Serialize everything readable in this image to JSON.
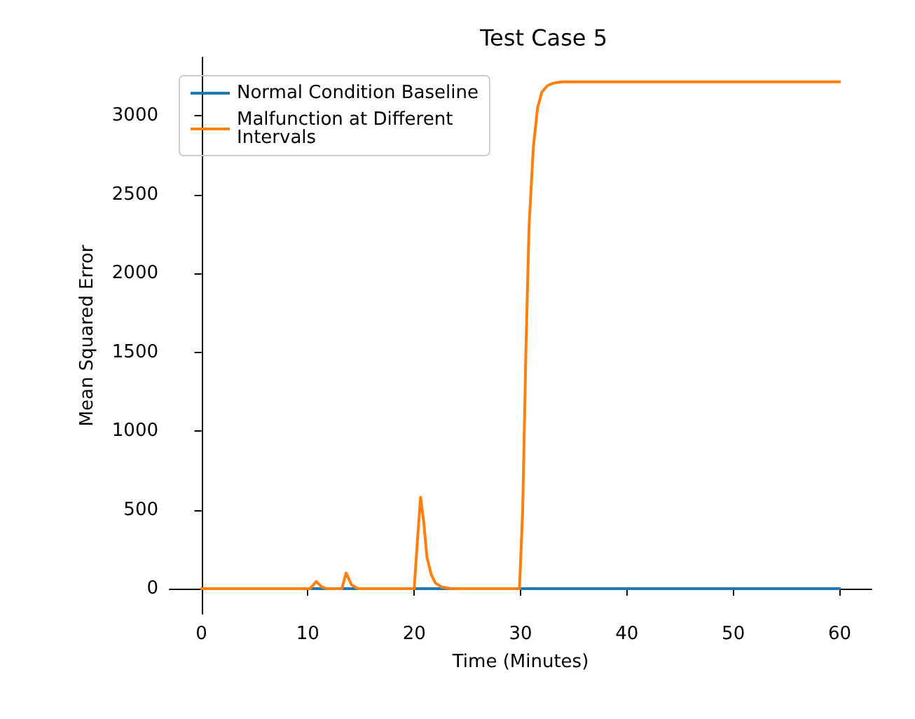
{
  "chart_data": {
    "type": "line",
    "title": "Test Case 5",
    "xlabel": "Time (Minutes)",
    "ylabel": "Mean Squared Error",
    "xlim": [
      -3,
      63
    ],
    "ylim": [
      -160,
      3370
    ],
    "xticks": [
      0,
      10,
      20,
      30,
      40,
      50,
      60
    ],
    "yticks": [
      0,
      500,
      1000,
      1500,
      2000,
      2500,
      3000
    ],
    "grid": false,
    "legend": "top left",
    "marker": "none",
    "line_style": "solid",
    "series": [
      {
        "name": "Normal Condition Baseline",
        "color": "#1f77b4",
        "x": [
          0,
          10,
          20,
          30,
          40,
          50,
          60
        ],
        "values": [
          0,
          0,
          0,
          0,
          0,
          0,
          0
        ]
      },
      {
        "name": "Malfunction at Different\nIntervals",
        "color": "#ff7f0e",
        "x": [
          0,
          10.2,
          10.8,
          11.3,
          11.8,
          13.2,
          13.6,
          14.1,
          14.7,
          20,
          20.3,
          20.6,
          20.9,
          21.2,
          21.6,
          22,
          22.6,
          23.5,
          29.9,
          30.2,
          30.5,
          30.8,
          31.2,
          31.6,
          32,
          32.5,
          33,
          33.5,
          34,
          35,
          40,
          50,
          60
        ],
        "values": [
          0,
          0,
          45,
          12,
          0,
          0,
          100,
          25,
          0,
          0,
          300,
          580,
          420,
          200,
          90,
          35,
          10,
          0,
          0,
          500,
          1500,
          2300,
          2800,
          3050,
          3150,
          3190,
          3205,
          3212,
          3215,
          3215,
          3215,
          3215,
          3215
        ]
      }
    ]
  }
}
